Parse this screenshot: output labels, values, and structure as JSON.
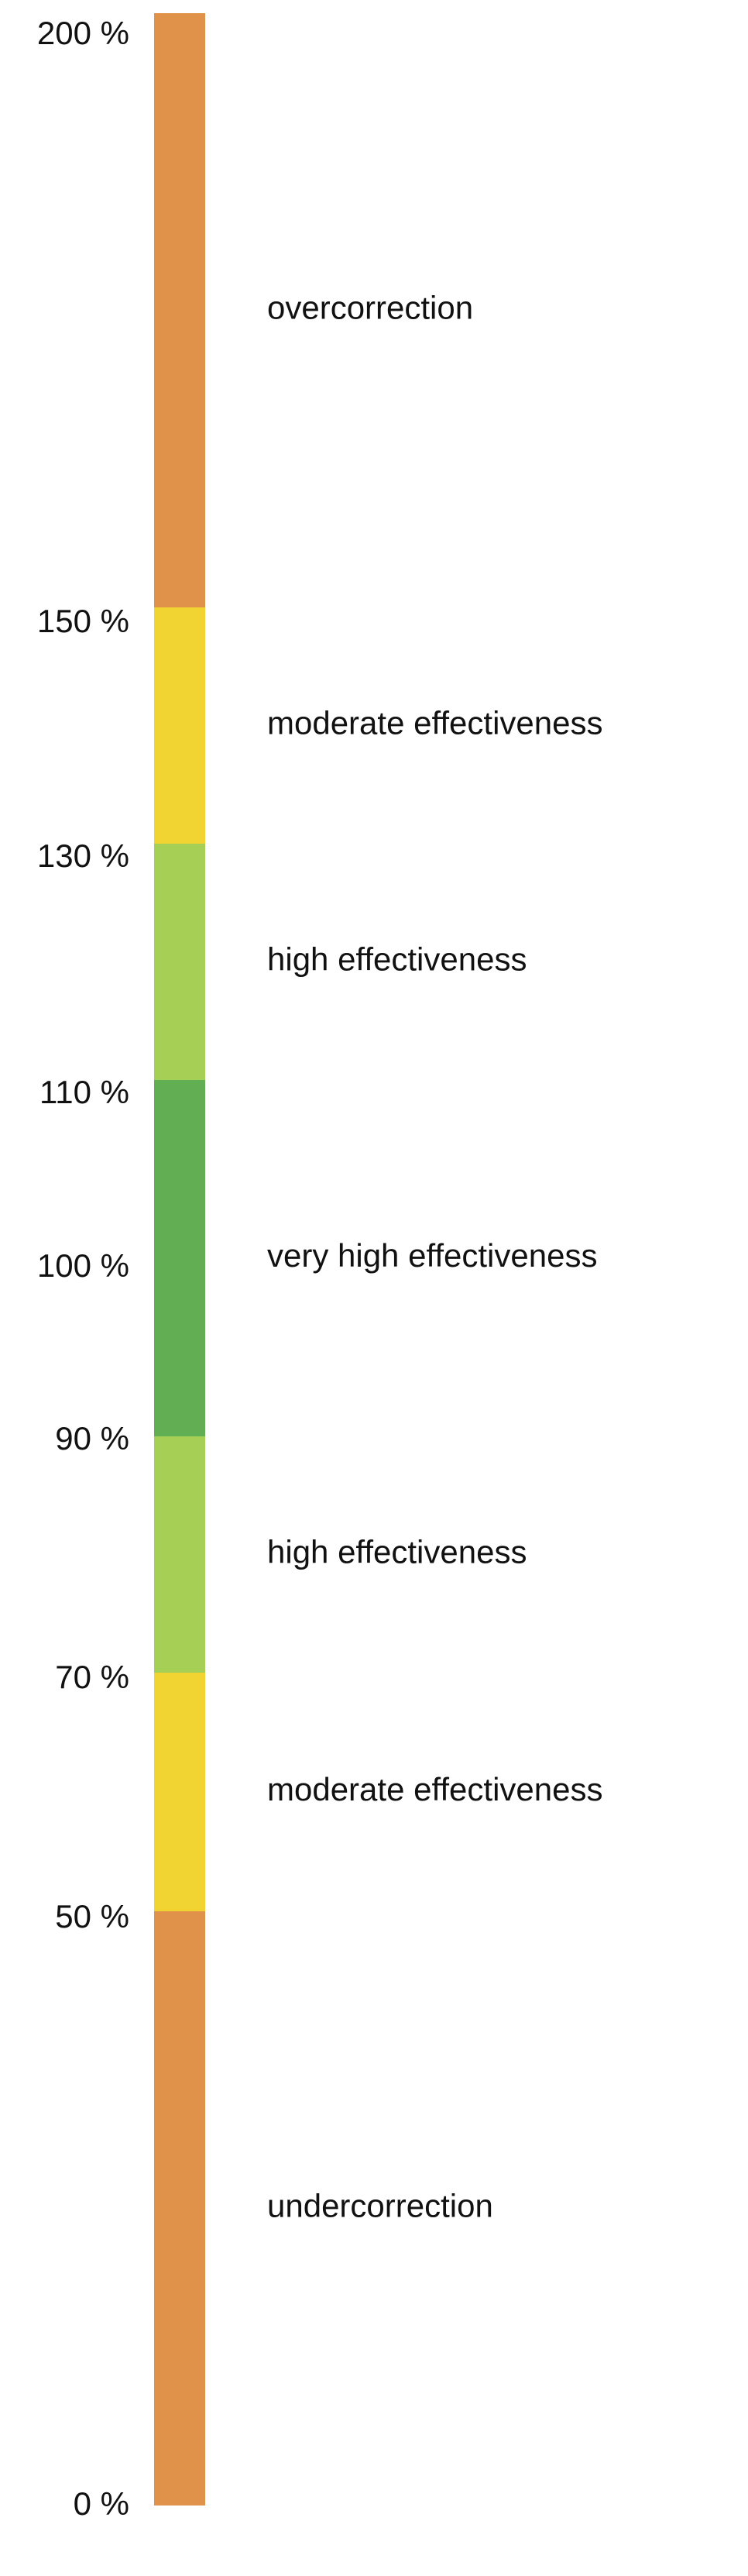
{
  "ticks": [
    "200 %",
    "150 %",
    "130 %",
    "110 %",
    "100 %",
    "90 %",
    "70 %",
    "50 %",
    "0 %"
  ],
  "bands": [
    {
      "label": "overcorrection",
      "color": "#E0914A"
    },
    {
      "label": "moderate effectiveness",
      "color": "#F1D431"
    },
    {
      "label": "high effectiveness",
      "color": "#A5CF55"
    },
    {
      "label": "very high effectiveness",
      "color": "#62AE52"
    },
    {
      "label": "high effectiveness",
      "color": "#A5CF55"
    },
    {
      "label": "moderate effectiveness",
      "color": "#F1D431"
    },
    {
      "label": "undercorrection",
      "color": "#E0914A"
    }
  ]
}
